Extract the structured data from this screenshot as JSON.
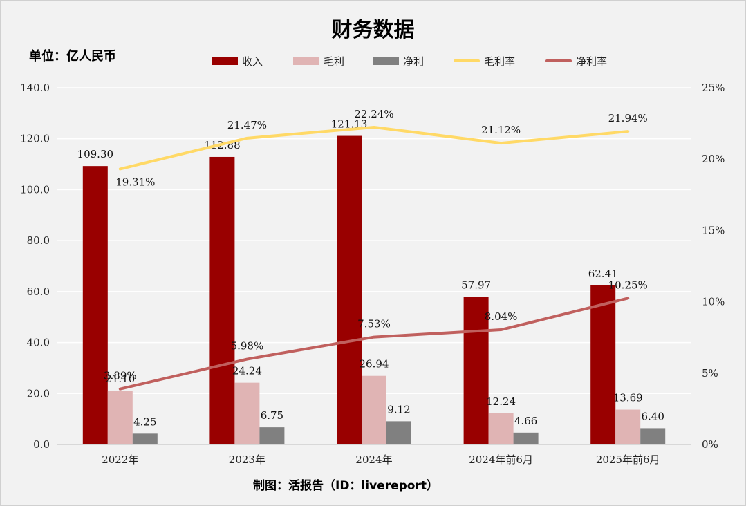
{
  "chart_data": {
    "type": "bar",
    "title": "财务数据",
    "unit_label": "单位：亿人民币",
    "footer": "制图：活报告（ID：livereport）",
    "categories": [
      "2022年",
      "2023年",
      "2024年",
      "2024年前6月",
      "2025年前6月"
    ],
    "series": [
      {
        "name": "收入",
        "kind": "bar",
        "axis": "left",
        "color": "#990000",
        "values": [
          109.3,
          112.88,
          121.13,
          57.97,
          62.41
        ],
        "labels": [
          "109.30",
          "112.88",
          "121.13",
          "57.97",
          "62.41"
        ]
      },
      {
        "name": "毛利",
        "kind": "bar",
        "axis": "left",
        "color": "#e0b4b4",
        "values": [
          21.1,
          24.24,
          26.94,
          12.24,
          13.69
        ],
        "labels": [
          "21.10",
          "24.24",
          "26.94",
          "12.24",
          "13.69"
        ]
      },
      {
        "name": "净利",
        "kind": "bar",
        "axis": "left",
        "color": "#808080",
        "values": [
          4.25,
          6.75,
          9.12,
          4.66,
          6.4
        ],
        "labels": [
          "4.25",
          "6.75",
          "9.12",
          "4.66",
          "6.40"
        ]
      },
      {
        "name": "毛利率",
        "kind": "line",
        "axis": "right",
        "color": "#ffd966",
        "values": [
          19.31,
          21.47,
          22.24,
          21.12,
          21.94
        ],
        "labels": [
          "19.31%",
          "21.47%",
          "22.24%",
          "21.12%",
          "21.94%"
        ]
      },
      {
        "name": "净利率",
        "kind": "line",
        "axis": "right",
        "color": "#c0605e",
        "values": [
          3.89,
          5.98,
          7.53,
          8.04,
          10.25
        ],
        "labels": [
          "3.89%",
          "5.98%",
          "7.53%",
          "8.04%",
          "10.25%"
        ]
      }
    ],
    "y_left": {
      "min": 0,
      "max": 140,
      "ticks": [
        "0.0",
        "20.0",
        "40.0",
        "60.0",
        "80.0",
        "100.0",
        "120.0",
        "140.0"
      ]
    },
    "y_right": {
      "min": 0,
      "max": 25,
      "ticks": [
        "0%",
        "5%",
        "10%",
        "15%",
        "20%",
        "25%"
      ]
    },
    "grid": true,
    "legend_position": "top"
  }
}
